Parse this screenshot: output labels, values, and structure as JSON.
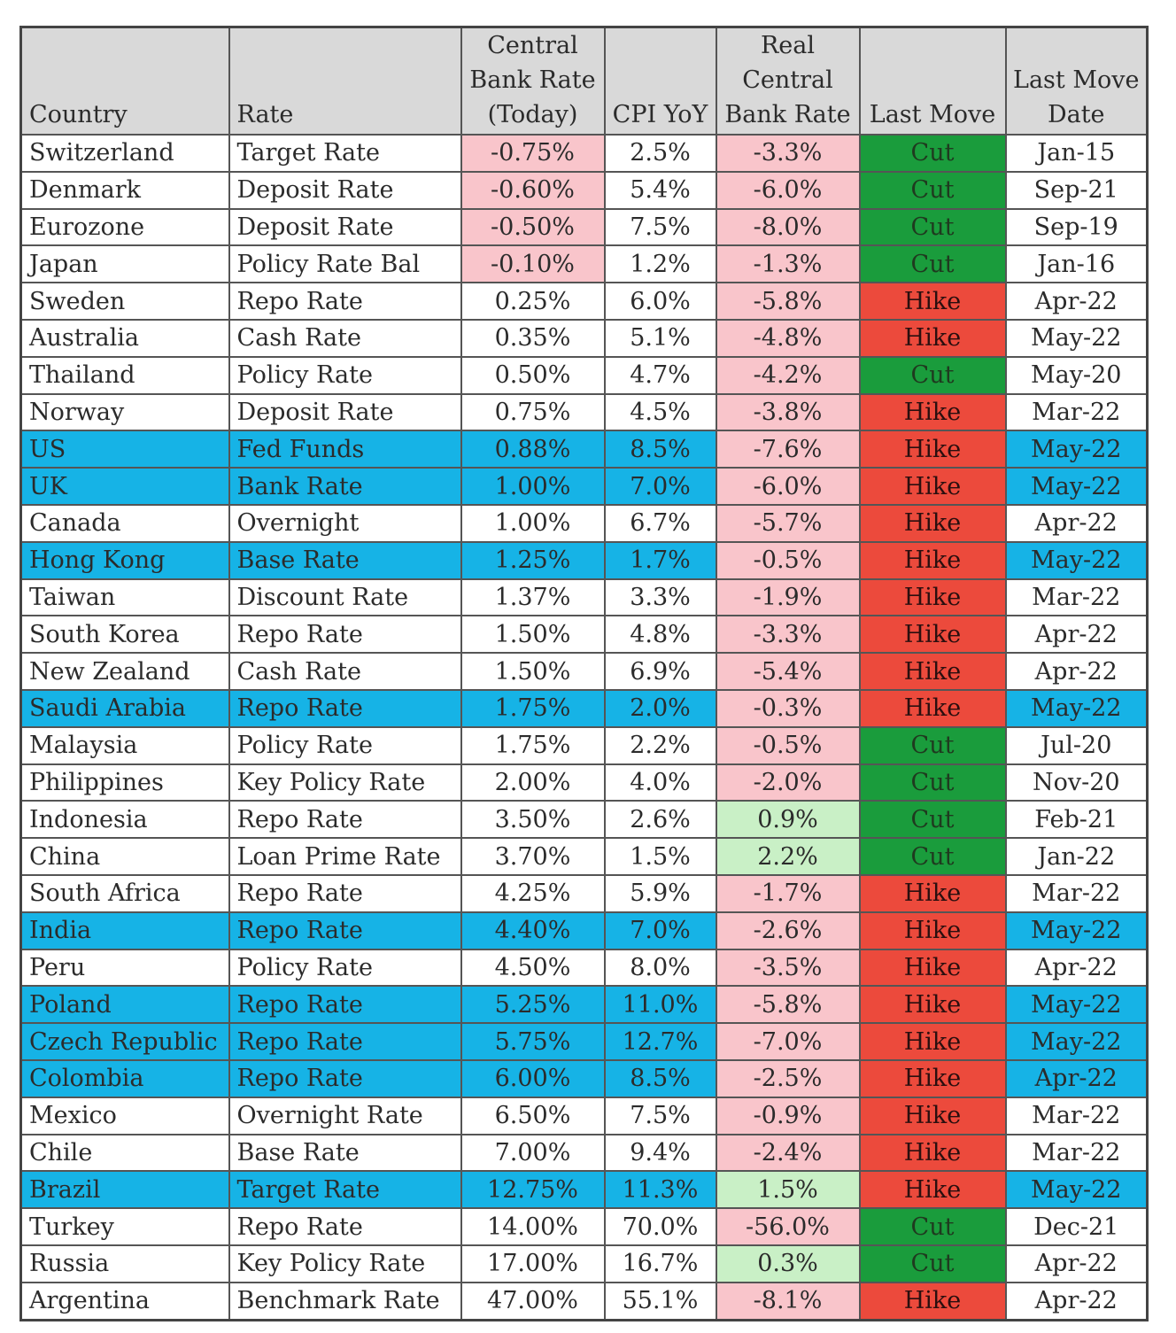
{
  "headers": {
    "country": "Country",
    "rate": "Rate",
    "cbr_line1": "Central",
    "cbr_line2": "Bank Rate",
    "cbr_line3": "(Today)",
    "cpi": "CPI YoY",
    "real_line1": "Real",
    "real_line2": "Central",
    "real_line3": "Bank Rate",
    "last_move": "Last Move",
    "lmd_line1": "Last Move",
    "lmd_line2": "Date"
  },
  "colors": {
    "header_bg": "#d9d9d9",
    "highlight_row": "#16b3e6",
    "negative_cell": "#f9c5cb",
    "positive_cell": "#c9f0c6",
    "cut": "#1a9c3c",
    "hike": "#ec4a3c"
  },
  "rows": [
    {
      "country": "Switzerland",
      "rate": "Target Rate",
      "cbr": "-0.75%",
      "cpi": "2.5%",
      "real": "-3.3%",
      "move": "Cut",
      "date": "Jan-15",
      "highlight": false,
      "cbr_neg": true,
      "real_pos": false
    },
    {
      "country": "Denmark",
      "rate": "Deposit Rate",
      "cbr": "-0.60%",
      "cpi": "5.4%",
      "real": "-6.0%",
      "move": "Cut",
      "date": "Sep-21",
      "highlight": false,
      "cbr_neg": true,
      "real_pos": false
    },
    {
      "country": "Eurozone",
      "rate": "Deposit Rate",
      "cbr": "-0.50%",
      "cpi": "7.5%",
      "real": "-8.0%",
      "move": "Cut",
      "date": "Sep-19",
      "highlight": false,
      "cbr_neg": true,
      "real_pos": false
    },
    {
      "country": "Japan",
      "rate": "Policy Rate Bal",
      "cbr": "-0.10%",
      "cpi": "1.2%",
      "real": "-1.3%",
      "move": "Cut",
      "date": "Jan-16",
      "highlight": false,
      "cbr_neg": true,
      "real_pos": false
    },
    {
      "country": "Sweden",
      "rate": "Repo Rate",
      "cbr": "0.25%",
      "cpi": "6.0%",
      "real": "-5.8%",
      "move": "Hike",
      "date": "Apr-22",
      "highlight": false,
      "cbr_neg": false,
      "real_pos": false
    },
    {
      "country": "Australia",
      "rate": "Cash Rate",
      "cbr": "0.35%",
      "cpi": "5.1%",
      "real": "-4.8%",
      "move": "Hike",
      "date": "May-22",
      "highlight": false,
      "cbr_neg": false,
      "real_pos": false
    },
    {
      "country": "Thailand",
      "rate": "Policy Rate",
      "cbr": "0.50%",
      "cpi": "4.7%",
      "real": "-4.2%",
      "move": "Cut",
      "date": "May-20",
      "highlight": false,
      "cbr_neg": false,
      "real_pos": false
    },
    {
      "country": "Norway",
      "rate": "Deposit Rate",
      "cbr": "0.75%",
      "cpi": "4.5%",
      "real": "-3.8%",
      "move": "Hike",
      "date": "Mar-22",
      "highlight": false,
      "cbr_neg": false,
      "real_pos": false
    },
    {
      "country": "US",
      "rate": "Fed Funds",
      "cbr": "0.88%",
      "cpi": "8.5%",
      "real": "-7.6%",
      "move": "Hike",
      "date": "May-22",
      "highlight": true,
      "cbr_neg": false,
      "real_pos": false
    },
    {
      "country": "UK",
      "rate": "Bank Rate",
      "cbr": "1.00%",
      "cpi": "7.0%",
      "real": "-6.0%",
      "move": "Hike",
      "date": "May-22",
      "highlight": true,
      "cbr_neg": false,
      "real_pos": false
    },
    {
      "country": "Canada",
      "rate": "Overnight",
      "cbr": "1.00%",
      "cpi": "6.7%",
      "real": "-5.7%",
      "move": "Hike",
      "date": "Apr-22",
      "highlight": false,
      "cbr_neg": false,
      "real_pos": false
    },
    {
      "country": "Hong Kong",
      "rate": "Base Rate",
      "cbr": "1.25%",
      "cpi": "1.7%",
      "real": "-0.5%",
      "move": "Hike",
      "date": "May-22",
      "highlight": true,
      "cbr_neg": false,
      "real_pos": false
    },
    {
      "country": "Taiwan",
      "rate": "Discount Rate",
      "cbr": "1.37%",
      "cpi": "3.3%",
      "real": "-1.9%",
      "move": "Hike",
      "date": "Mar-22",
      "highlight": false,
      "cbr_neg": false,
      "real_pos": false
    },
    {
      "country": "South Korea",
      "rate": "Repo Rate",
      "cbr": "1.50%",
      "cpi": "4.8%",
      "real": "-3.3%",
      "move": "Hike",
      "date": "Apr-22",
      "highlight": false,
      "cbr_neg": false,
      "real_pos": false
    },
    {
      "country": "New Zealand",
      "rate": "Cash Rate",
      "cbr": "1.50%",
      "cpi": "6.9%",
      "real": "-5.4%",
      "move": "Hike",
      "date": "Apr-22",
      "highlight": false,
      "cbr_neg": false,
      "real_pos": false
    },
    {
      "country": "Saudi Arabia",
      "rate": "Repo Rate",
      "cbr": "1.75%",
      "cpi": "2.0%",
      "real": "-0.3%",
      "move": "Hike",
      "date": "May-22",
      "highlight": true,
      "cbr_neg": false,
      "real_pos": false
    },
    {
      "country": "Malaysia",
      "rate": "Policy Rate",
      "cbr": "1.75%",
      "cpi": "2.2%",
      "real": "-0.5%",
      "move": "Cut",
      "date": "Jul-20",
      "highlight": false,
      "cbr_neg": false,
      "real_pos": false
    },
    {
      "country": "Philippines",
      "rate": "Key Policy Rate",
      "cbr": "2.00%",
      "cpi": "4.0%",
      "real": "-2.0%",
      "move": "Cut",
      "date": "Nov-20",
      "highlight": false,
      "cbr_neg": false,
      "real_pos": false
    },
    {
      "country": "Indonesia",
      "rate": "Repo Rate",
      "cbr": "3.50%",
      "cpi": "2.6%",
      "real": "0.9%",
      "move": "Cut",
      "date": "Feb-21",
      "highlight": false,
      "cbr_neg": false,
      "real_pos": true
    },
    {
      "country": "China",
      "rate": "Loan Prime Rate",
      "cbr": "3.70%",
      "cpi": "1.5%",
      "real": "2.2%",
      "move": "Cut",
      "date": "Jan-22",
      "highlight": false,
      "cbr_neg": false,
      "real_pos": true
    },
    {
      "country": "South Africa",
      "rate": "Repo Rate",
      "cbr": "4.25%",
      "cpi": "5.9%",
      "real": "-1.7%",
      "move": "Hike",
      "date": "Mar-22",
      "highlight": false,
      "cbr_neg": false,
      "real_pos": false
    },
    {
      "country": "India",
      "rate": "Repo Rate",
      "cbr": "4.40%",
      "cpi": "7.0%",
      "real": "-2.6%",
      "move": "Hike",
      "date": "May-22",
      "highlight": true,
      "cbr_neg": false,
      "real_pos": false
    },
    {
      "country": "Peru",
      "rate": "Policy Rate",
      "cbr": "4.50%",
      "cpi": "8.0%",
      "real": "-3.5%",
      "move": "Hike",
      "date": "Apr-22",
      "highlight": false,
      "cbr_neg": false,
      "real_pos": false
    },
    {
      "country": "Poland",
      "rate": "Repo Rate",
      "cbr": "5.25%",
      "cpi": "11.0%",
      "real": "-5.8%",
      "move": "Hike",
      "date": "May-22",
      "highlight": true,
      "cbr_neg": false,
      "real_pos": false
    },
    {
      "country": "Czech Republic",
      "rate": "Repo Rate",
      "cbr": "5.75%",
      "cpi": "12.7%",
      "real": "-7.0%",
      "move": "Hike",
      "date": "May-22",
      "highlight": true,
      "cbr_neg": false,
      "real_pos": false
    },
    {
      "country": "Colombia",
      "rate": "Repo Rate",
      "cbr": "6.00%",
      "cpi": "8.5%",
      "real": "-2.5%",
      "move": "Hike",
      "date": "Apr-22",
      "highlight": true,
      "cbr_neg": false,
      "real_pos": false
    },
    {
      "country": "Mexico",
      "rate": "Overnight Rate",
      "cbr": "6.50%",
      "cpi": "7.5%",
      "real": "-0.9%",
      "move": "Hike",
      "date": "Mar-22",
      "highlight": false,
      "cbr_neg": false,
      "real_pos": false
    },
    {
      "country": "Chile",
      "rate": "Base Rate",
      "cbr": "7.00%",
      "cpi": "9.4%",
      "real": "-2.4%",
      "move": "Hike",
      "date": "Mar-22",
      "highlight": false,
      "cbr_neg": false,
      "real_pos": false
    },
    {
      "country": "Brazil",
      "rate": "Target Rate",
      "cbr": "12.75%",
      "cpi": "11.3%",
      "real": "1.5%",
      "move": "Hike",
      "date": "May-22",
      "highlight": true,
      "cbr_neg": false,
      "real_pos": true
    },
    {
      "country": "Turkey",
      "rate": "Repo Rate",
      "cbr": "14.00%",
      "cpi": "70.0%",
      "real": "-56.0%",
      "move": "Cut",
      "date": "Dec-21",
      "highlight": false,
      "cbr_neg": false,
      "real_pos": false
    },
    {
      "country": "Russia",
      "rate": "Key Policy Rate",
      "cbr": "17.00%",
      "cpi": "16.7%",
      "real": "0.3%",
      "move": "Cut",
      "date": "Apr-22",
      "highlight": false,
      "cbr_neg": false,
      "real_pos": true
    },
    {
      "country": "Argentina",
      "rate": "Benchmark Rate",
      "cbr": "47.00%",
      "cpi": "55.1%",
      "real": "-8.1%",
      "move": "Hike",
      "date": "Apr-22",
      "highlight": false,
      "cbr_neg": false,
      "real_pos": false
    }
  ]
}
